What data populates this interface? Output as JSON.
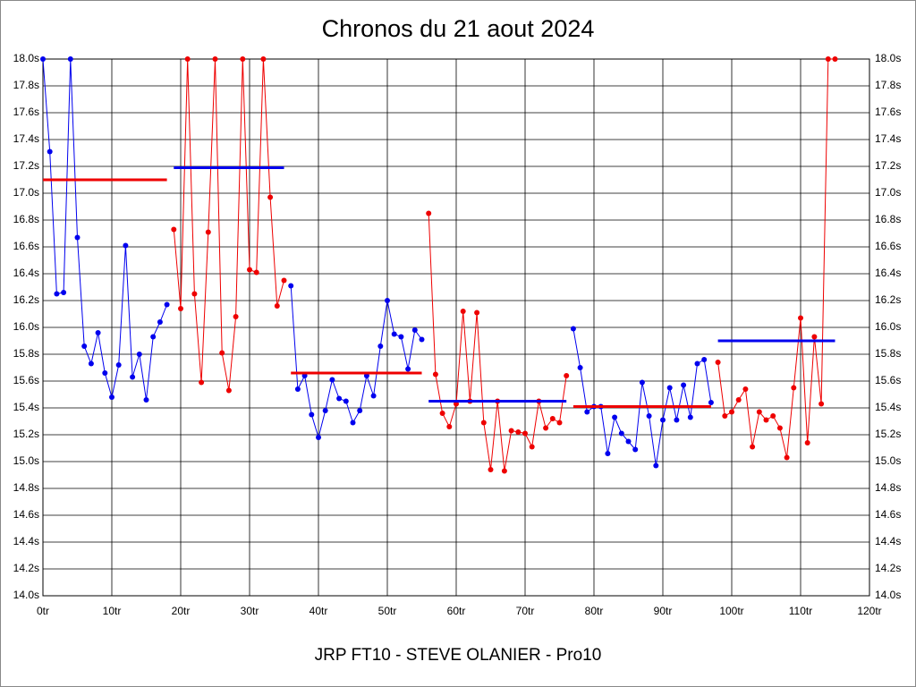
{
  "chart_data": {
    "type": "line",
    "title": "Chronos du 21 aout 2024",
    "footer": "JRP FT10 - STEVE OLANIER - Pro10",
    "grid": true,
    "xlim": [
      0,
      120
    ],
    "ylim": [
      14,
      18
    ],
    "xticks": [
      {
        "value": 0,
        "label": "0tr"
      },
      {
        "value": 10,
        "label": "10tr"
      },
      {
        "value": 20,
        "label": "20tr"
      },
      {
        "value": 30,
        "label": "30tr"
      },
      {
        "value": 40,
        "label": "40tr"
      },
      {
        "value": 50,
        "label": "50tr"
      },
      {
        "value": 60,
        "label": "60tr"
      },
      {
        "value": 70,
        "label": "70tr"
      },
      {
        "value": 80,
        "label": "80tr"
      },
      {
        "value": 90,
        "label": "90tr"
      },
      {
        "value": 100,
        "label": "100tr"
      },
      {
        "value": 110,
        "label": "110tr"
      },
      {
        "value": 120,
        "label": "120tr"
      }
    ],
    "yticks": [
      {
        "value": 14,
        "label": "14.0s"
      },
      {
        "value": 14.2,
        "label": "14.2s"
      },
      {
        "value": 14.4,
        "label": "14.4s"
      },
      {
        "value": 14.6,
        "label": "14.6s"
      },
      {
        "value": 14.8,
        "label": "14.8s"
      },
      {
        "value": 15,
        "label": "15.0s"
      },
      {
        "value": 15.2,
        "label": "15.2s"
      },
      {
        "value": 15.4,
        "label": "15.4s"
      },
      {
        "value": 15.6,
        "label": "15.6s"
      },
      {
        "value": 15.8,
        "label": "15.8s"
      },
      {
        "value": 16,
        "label": "16.0s"
      },
      {
        "value": 16.2,
        "label": "16.2s"
      },
      {
        "value": 16.4,
        "label": "16.4s"
      },
      {
        "value": 16.6,
        "label": "16.6s"
      },
      {
        "value": 16.8,
        "label": "16.8s"
      },
      {
        "value": 17,
        "label": "17.0s"
      },
      {
        "value": 17.2,
        "label": "17.2s"
      },
      {
        "value": 17.4,
        "label": "17.4s"
      },
      {
        "value": 17.6,
        "label": "17.6s"
      },
      {
        "value": 17.8,
        "label": "17.8s"
      },
      {
        "value": 18,
        "label": "18.0s"
      }
    ],
    "series": [
      {
        "color": "#0000ee",
        "mean": 17.1,
        "mean_color": "#ee0000",
        "x": [
          0,
          1,
          2,
          3,
          4,
          5,
          6,
          7,
          8,
          9,
          10,
          11,
          12,
          13,
          14,
          15,
          16,
          17,
          18
        ],
        "values": [
          18.0,
          17.31,
          16.25,
          16.26,
          18.0,
          16.67,
          15.86,
          15.73,
          15.96,
          15.66,
          15.48,
          15.72,
          16.61,
          15.63,
          15.8,
          15.46,
          15.93,
          16.04,
          16.17
        ]
      },
      {
        "color": "#ee0000",
        "mean": 17.19,
        "mean_color": "#0000ee",
        "x": [
          19,
          20,
          21,
          22,
          23,
          24,
          25,
          26,
          27,
          28,
          29,
          30,
          31,
          32,
          33,
          34,
          35
        ],
        "values": [
          16.73,
          16.14,
          18.0,
          16.25,
          15.59,
          16.71,
          18.0,
          15.81,
          15.53,
          16.08,
          18.0,
          16.43,
          16.41,
          18.0,
          16.97,
          16.16,
          16.35
        ]
      },
      {
        "color": "#0000ee",
        "mean": 15.66,
        "mean_color": "#ee0000",
        "x": [
          36,
          37,
          38,
          39,
          40,
          41,
          42,
          43,
          44,
          45,
          46,
          47,
          48,
          49,
          50,
          51,
          52,
          53,
          54,
          55
        ],
        "values": [
          16.31,
          15.54,
          15.64,
          15.35,
          15.18,
          15.38,
          15.61,
          15.47,
          15.45,
          15.29,
          15.38,
          15.64,
          15.49,
          15.86,
          16.2,
          15.95,
          15.93,
          15.69,
          15.98,
          15.91
        ]
      },
      {
        "color": "#ee0000",
        "mean": 15.45,
        "mean_color": "#0000ee",
        "x": [
          56,
          57,
          58,
          59,
          60,
          61,
          62,
          63,
          64,
          65,
          66,
          67,
          68,
          69,
          70,
          71,
          72,
          73,
          74,
          75,
          76
        ],
        "values": [
          16.85,
          15.65,
          15.36,
          15.26,
          15.43,
          16.12,
          15.45,
          16.11,
          15.29,
          14.94,
          15.45,
          14.93,
          15.23,
          15.22,
          15.21,
          15.11,
          15.45,
          15.25,
          15.32,
          15.29,
          15.64
        ]
      },
      {
        "color": "#0000ee",
        "mean": 15.41,
        "mean_color": "#ee0000",
        "x": [
          77,
          78,
          79,
          80,
          81,
          82,
          83,
          84,
          85,
          86,
          87,
          88,
          89,
          90,
          91,
          92,
          93,
          94,
          95,
          96,
          97
        ],
        "values": [
          15.99,
          15.7,
          15.37,
          15.41,
          15.41,
          15.06,
          15.33,
          15.21,
          15.15,
          15.09,
          15.59,
          15.34,
          14.97,
          15.31,
          15.55,
          15.31,
          15.57,
          15.33,
          15.73,
          15.76,
          15.44
        ]
      },
      {
        "color": "#ee0000",
        "mean": 15.9,
        "mean_color": "#0000ee",
        "x": [
          98,
          99,
          100,
          101,
          102,
          103,
          104,
          105,
          106,
          107,
          108,
          109,
          110,
          111,
          112,
          113,
          114,
          115
        ],
        "values": [
          15.74,
          15.34,
          15.37,
          15.46,
          15.54,
          15.11,
          15.37,
          15.31,
          15.34,
          15.25,
          15.03,
          15.55,
          16.07,
          15.14,
          15.93,
          15.43,
          18.0,
          18.0
        ]
      }
    ]
  }
}
